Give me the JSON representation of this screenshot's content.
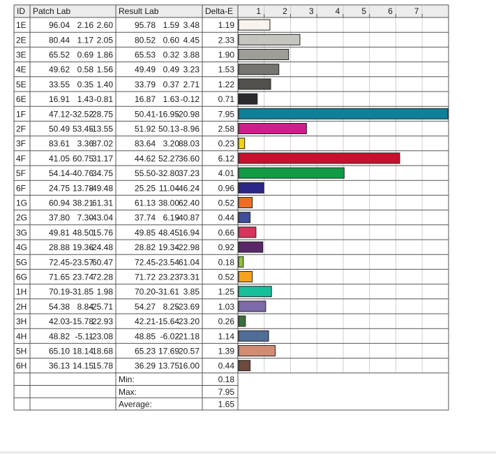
{
  "headers": {
    "id": "ID",
    "patch": "Patch Lab",
    "result": "Result Lab",
    "delta": "Delta-E"
  },
  "rows": [
    {
      "id": "1E",
      "p": [
        "96.04",
        "2.16",
        "2.60"
      ],
      "r": [
        "95.78",
        "1.59",
        "3.48"
      ],
      "d": "1.19",
      "color": "#f8f3ec"
    },
    {
      "id": "2E",
      "p": [
        "80.44",
        "1.17",
        "2.05"
      ],
      "r": [
        "80.52",
        "0.60",
        "4.45"
      ],
      "d": "2.33",
      "color": "#c7c5c0"
    },
    {
      "id": "3E",
      "p": [
        "65.52",
        "0.69",
        "1.86"
      ],
      "r": [
        "65.53",
        "0.32",
        "3.88"
      ],
      "d": "1.90",
      "color": "#9e9d98"
    },
    {
      "id": "4E",
      "p": [
        "49.62",
        "0.58",
        "1.56"
      ],
      "r": [
        "49.49",
        "0.49",
        "3.23"
      ],
      "d": "1.53",
      "color": "#767572"
    },
    {
      "id": "5E",
      "p": [
        "33.55",
        "0.35",
        "1.40"
      ],
      "r": [
        "33.79",
        "0.37",
        "2.71"
      ],
      "d": "1.22",
      "color": "#51504d"
    },
    {
      "id": "6E",
      "p": [
        "16.91",
        "1.43",
        "-0.81"
      ],
      "r": [
        "16.87",
        "1.63",
        "-0.12"
      ],
      "d": "0.71",
      "color": "#2b2a2c"
    },
    {
      "id": "1F",
      "p": [
        "47.12",
        "-32.52",
        "-28.75"
      ],
      "r": [
        "50.41",
        "-16.95",
        "-20.98"
      ],
      "d": "7.95",
      "color": "#0f7f9a"
    },
    {
      "id": "2F",
      "p": [
        "50.49",
        "53.45",
        "-13.55"
      ],
      "r": [
        "51.92",
        "50.13",
        "-8.96"
      ],
      "d": "2.58",
      "color": "#d21c8c"
    },
    {
      "id": "3F",
      "p": [
        "83.61",
        "3.36",
        "87.02"
      ],
      "r": [
        "83.64",
        "3.20",
        "88.03"
      ],
      "d": "0.23",
      "color": "#f2d40c"
    },
    {
      "id": "4F",
      "p": [
        "41.05",
        "60.75",
        "31.17"
      ],
      "r": [
        "44.62",
        "52.27",
        "36.60"
      ],
      "d": "6.12",
      "color": "#c8102e"
    },
    {
      "id": "5F",
      "p": [
        "54.14",
        "-40.76",
        "34.75"
      ],
      "r": [
        "55.50",
        "-32.80",
        "37.23"
      ],
      "d": "4.01",
      "color": "#139a45"
    },
    {
      "id": "6F",
      "p": [
        "24.75",
        "13.78",
        "-49.48"
      ],
      "r": [
        "25.25",
        "11.04",
        "-46.24"
      ],
      "d": "0.96",
      "color": "#2a2786"
    },
    {
      "id": "1G",
      "p": [
        "60.94",
        "38.21",
        "61.31"
      ],
      "r": [
        "61.13",
        "38.00",
        "62.40"
      ],
      "d": "0.52",
      "color": "#f06c25"
    },
    {
      "id": "2G",
      "p": [
        "37.80",
        "7.30",
        "-43.04"
      ],
      "r": [
        "37.74",
        "6.19",
        "-40.87"
      ],
      "d": "0.44",
      "color": "#3f4e9a"
    },
    {
      "id": "3G",
      "p": [
        "49.81",
        "48.50",
        "15.76"
      ],
      "r": [
        "49.85",
        "48.45",
        "16.94"
      ],
      "d": "0.66",
      "color": "#d8345c"
    },
    {
      "id": "4G",
      "p": [
        "28.88",
        "19.36",
        "-24.48"
      ],
      "r": [
        "28.82",
        "19.34",
        "-22.98"
      ],
      "d": "0.92",
      "color": "#5a2868"
    },
    {
      "id": "5G",
      "p": [
        "72.45",
        "-23.57",
        "60.47"
      ],
      "r": [
        "72.45",
        "-23.54",
        "61.04"
      ],
      "d": "0.18",
      "color": "#8fc23b"
    },
    {
      "id": "6G",
      "p": [
        "71.65",
        "23.74",
        "72.28"
      ],
      "r": [
        "71.72",
        "23.23",
        "73.31"
      ],
      "d": "0.52",
      "color": "#f7a21e"
    },
    {
      "id": "1H",
      "p": [
        "70.19",
        "-31.85",
        "1.98"
      ],
      "r": [
        "70.20",
        "-31.61",
        "3.85"
      ],
      "d": "1.25",
      "color": "#17bf9b"
    },
    {
      "id": "2H",
      "p": [
        "54.38",
        "8.84",
        "-25.71"
      ],
      "r": [
        "54.27",
        "8.25",
        "-23.69"
      ],
      "d": "1.03",
      "color": "#7d6aa9"
    },
    {
      "id": "3H",
      "p": [
        "42.03",
        "-15.78",
        "22.93"
      ],
      "r": [
        "42.21",
        "-15.64",
        "23.20"
      ],
      "d": "0.26",
      "color": "#3c6e3a"
    },
    {
      "id": "4H",
      "p": [
        "48.82",
        "-5.11",
        "-23.08"
      ],
      "r": [
        "48.85",
        "-6.02",
        "-21.18"
      ],
      "d": "1.14",
      "color": "#4e6e98"
    },
    {
      "id": "5H",
      "p": [
        "65.10",
        "18.14",
        "18.68"
      ],
      "r": [
        "65.23",
        "17.69",
        "20.57"
      ],
      "d": "1.39",
      "color": "#d28c72"
    },
    {
      "id": "6H",
      "p": [
        "36.13",
        "14.15",
        "15.78"
      ],
      "r": [
        "36.29",
        "13.75",
        "16.00"
      ],
      "d": "0.44",
      "color": "#6e4a3c"
    }
  ],
  "summary": [
    {
      "label": "Min:",
      "value": "0.18"
    },
    {
      "label": "Max:",
      "value": "7.95"
    },
    {
      "label": "Average:",
      "value": "1.65"
    }
  ],
  "chart_data": {
    "type": "bar",
    "orientation": "horizontal",
    "categories": [
      "1E",
      "2E",
      "3E",
      "4E",
      "5E",
      "6E",
      "1F",
      "2F",
      "3F",
      "4F",
      "5F",
      "6F",
      "1G",
      "2G",
      "3G",
      "4G",
      "5G",
      "6G",
      "1H",
      "2H",
      "3H",
      "4H",
      "5H",
      "6H"
    ],
    "values": [
      1.19,
      2.33,
      1.9,
      1.53,
      1.22,
      0.71,
      7.95,
      2.58,
      0.23,
      6.12,
      4.01,
      0.96,
      0.52,
      0.44,
      0.66,
      0.92,
      0.18,
      0.52,
      1.25,
      1.03,
      0.26,
      1.14,
      1.39,
      0.44
    ],
    "xlim": [
      0,
      7.95
    ],
    "xticks": [
      "1",
      "2",
      "3",
      "4",
      "5",
      "6",
      "7"
    ],
    "grid": true,
    "xlabel": "",
    "ylabel": ""
  }
}
